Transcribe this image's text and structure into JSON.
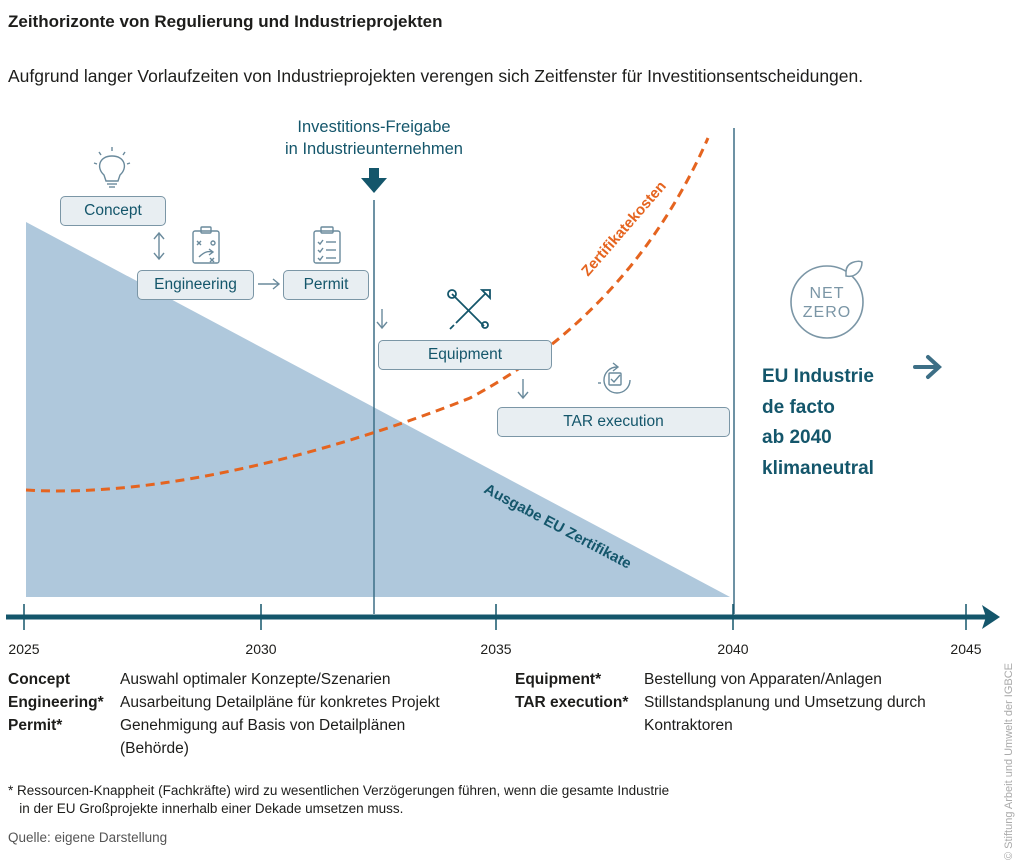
{
  "title": "Zeithorizonte von Regulierung und Industrieprojekten",
  "subtitle": "Aufgrund langer Vorlaufzeiten von Industrieprojekten verengen sich Zeitfenster für Investitionsentscheidungen.",
  "investment": {
    "line1": "Investitions-Freigabe",
    "line2": "in Industrieunternehmen",
    "year": 2032.4
  },
  "boxes": {
    "concept": "Concept",
    "engineering": "Engineering",
    "permit": "Permit",
    "equipment": "Equipment",
    "tar": "TAR execution"
  },
  "net_zero": {
    "line1": "NET",
    "line2": "ZERO"
  },
  "eu_label": [
    "EU Industrie",
    "de facto",
    "ab 2040",
    "klimaneutral"
  ],
  "curve_label": "Zertifikatekosten",
  "area_label": "Ausgabe EU Zertifikate",
  "axis": {
    "ticks": [
      "2025",
      "2030",
      "2035",
      "2040",
      "2045"
    ],
    "min": 2025,
    "max": 2045
  },
  "legend_left": [
    {
      "key": "Concept",
      "value": "Auswahl optimaler Konzepte/Szenarien"
    },
    {
      "key": "Engineering*",
      "value": "Ausarbeitung Detailpläne für konkretes Projekt"
    },
    {
      "key": "Permit*",
      "value": "Genehmigung auf Basis von Detailplänen"
    },
    {
      "key": "",
      "value": "(Behörde)"
    }
  ],
  "legend_right": [
    {
      "key": "Equipment*",
      "value": "Bestellung von Apparaten/Anlagen"
    },
    {
      "key": "TAR execution*",
      "value": "Stillstandsplanung und Umsetzung durch"
    },
    {
      "key": "",
      "value": "Kontraktoren"
    }
  ],
  "footnote": "* Ressourcen-Knappheit (Fachkräfte) wird zu wesentlichen Verzögerungen führen, wenn die gesamte Industrie\n   in der EU Großprojekte innerhalb einer Dekade umsetzen muss.",
  "source": "Quelle: eigene Darstellung",
  "copyright": "© Stiftung Arbeit und Umwelt der IGBCE",
  "colors": {
    "dark_teal": "#14566b",
    "area": "#afc8dc",
    "orange": "#e5641f",
    "box_fill": "#e8eef2",
    "box_border": "#7b96a6"
  }
}
